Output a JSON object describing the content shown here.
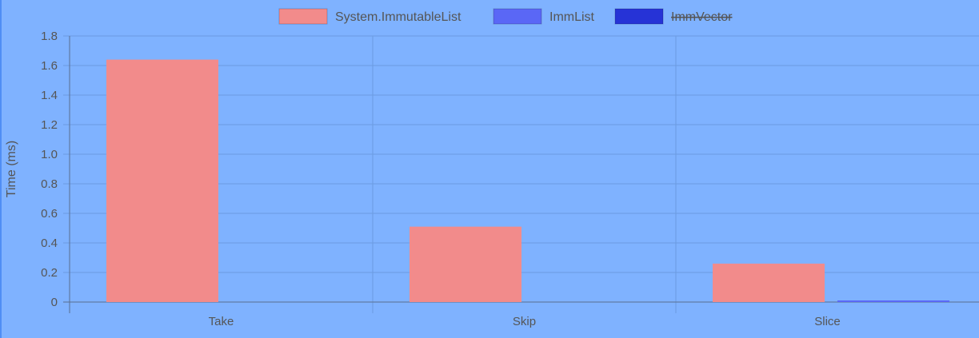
{
  "chart_data": {
    "type": "bar",
    "categories": [
      "Take",
      "Skip",
      "Slice"
    ],
    "series": [
      {
        "name": "System.ImmutableList",
        "values": [
          1.64,
          0.51,
          0.26
        ],
        "color": "#f28b8b",
        "hidden": false
      },
      {
        "name": "ImmList",
        "values": [
          0.0,
          0.0,
          0.01
        ],
        "color": "#5a67f6",
        "hidden": false
      },
      {
        "name": "ImmVector",
        "values": [
          0.0,
          0.0,
          0.0
        ],
        "color": "#2633d6",
        "hidden": true
      }
    ],
    "title": "",
    "xlabel": "",
    "ylabel": "Time (ms)",
    "ylim": [
      0,
      1.8
    ],
    "yticks": [
      "0",
      "0.2",
      "0.4",
      "0.6",
      "0.8",
      "1.0",
      "1.2",
      "1.4",
      "1.6",
      "1.8"
    ],
    "grid": true,
    "legend_position": "top",
    "colors": {
      "background": "#7fb2ff",
      "grid": "#6b9be0",
      "axis": "#5a6f8f",
      "text": "#555555"
    }
  }
}
